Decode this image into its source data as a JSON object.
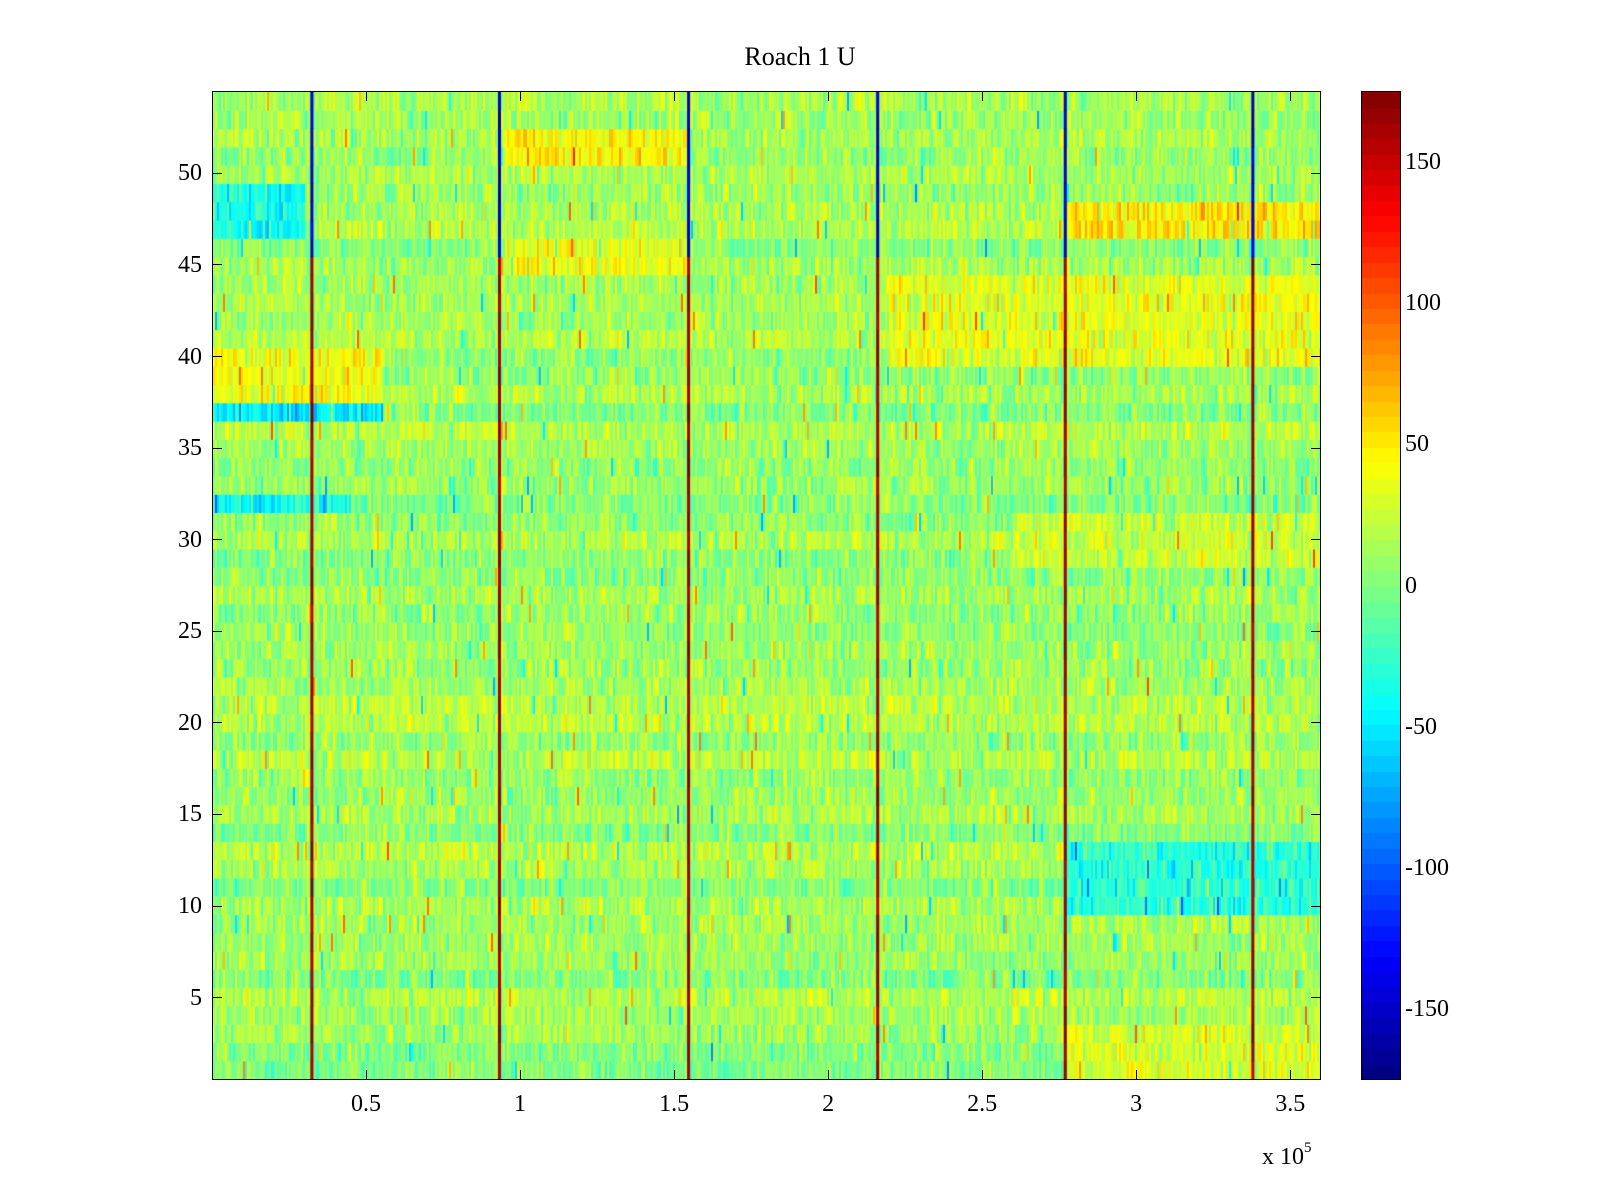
{
  "chart_data": {
    "type": "heatmap",
    "title": "Roach 1 U",
    "xlabel": "",
    "ylabel": "",
    "x_multiplier_base": "x 10",
    "x_multiplier_exponent": "5",
    "xlim": [
      0,
      3.6
    ],
    "ylim": [
      0.5,
      54.5
    ],
    "xticks": [
      0.5,
      1,
      1.5,
      2,
      2.5,
      3,
      3.5
    ],
    "xtick_labels": [
      "0.5",
      "1",
      "1.5",
      "2",
      "2.5",
      "3",
      "3.5"
    ],
    "yticks": [
      5,
      10,
      15,
      20,
      25,
      30,
      35,
      40,
      45,
      50
    ],
    "ytick_labels": [
      "5",
      "10",
      "15",
      "20",
      "25",
      "30",
      "35",
      "40",
      "45",
      "50"
    ],
    "rows": 54,
    "colormap": "jet",
    "clim": [
      -175,
      175
    ],
    "colorbar_ticks": [
      150,
      100,
      50,
      0,
      -50,
      -100,
      -150
    ],
    "colorbar_tick_labels": [
      "150",
      "100",
      "50",
      "0",
      "-50",
      "-100",
      "-150"
    ],
    "stimulus_event_x": [
      0.32,
      0.93,
      1.545,
      2.16,
      2.77,
      3.38
    ],
    "baseline_value": 10,
    "noise_amplitude": 25,
    "regions": [
      {
        "rows": [
          45,
          46
        ],
        "x": [
          0.95,
          1.55
        ],
        "value": 40,
        "note": "yellow band"
      },
      {
        "rows": [
          38,
          40
        ],
        "x": [
          0,
          0.55
        ],
        "value": 40
      },
      {
        "rows": [
          37,
          37
        ],
        "x": [
          0,
          0.55
        ],
        "value": -50
      },
      {
        "rows": [
          32,
          32
        ],
        "x": [
          0,
          0.45
        ],
        "value": -40
      },
      {
        "rows": [
          47,
          49
        ],
        "x": [
          0,
          0.3
        ],
        "value": -40
      },
      {
        "rows": [
          47,
          48
        ],
        "x": [
          2.78,
          3.6
        ],
        "value": 50
      },
      {
        "rows": [
          40,
          44
        ],
        "x": [
          2.2,
          3.6
        ],
        "value": 35
      },
      {
        "rows": [
          10,
          13
        ],
        "x": [
          2.78,
          3.6
        ],
        "value": -30
      },
      {
        "rows": [
          1,
          3
        ],
        "x": [
          2.78,
          3.6
        ],
        "value": 30
      },
      {
        "rows": [
          51,
          52
        ],
        "x": [
          0.95,
          1.55
        ],
        "value": 45
      },
      {
        "rows": [
          29,
          31
        ],
        "x": [
          2.6,
          3.6
        ],
        "value": 25
      }
    ]
  }
}
